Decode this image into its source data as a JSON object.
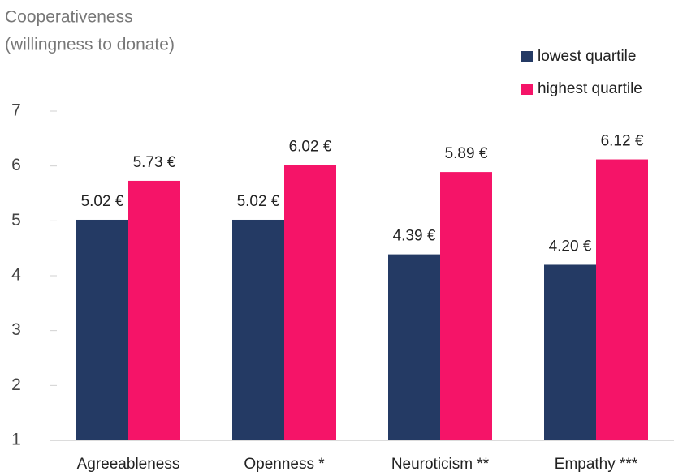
{
  "chart_data": {
    "type": "bar",
    "ylabel": [
      "Cooperativeness",
      "(willingness to donate)"
    ],
    "categories": [
      "Agreeableness",
      "Openness *",
      "Neuroticism **",
      "Empathy ***"
    ],
    "series": [
      {
        "name": "lowest quartile",
        "color": "#243a64",
        "values": [
          5.02,
          5.02,
          4.39,
          4.2
        ],
        "value_labels": [
          "5.02 €",
          "5.02 €",
          "4.39 €",
          "4.20 €"
        ]
      },
      {
        "name": "highest quartile",
        "color": "#f51468",
        "values": [
          5.73,
          6.02,
          5.89,
          6.12
        ],
        "value_labels": [
          "5.73 €",
          "6.02 €",
          "5.89 €",
          "6.12 €"
        ]
      }
    ],
    "ylim": [
      1,
      7
    ],
    "yticks": [
      1,
      2,
      3,
      4,
      5,
      6,
      7
    ],
    "grid": false,
    "legend": "top-right"
  }
}
